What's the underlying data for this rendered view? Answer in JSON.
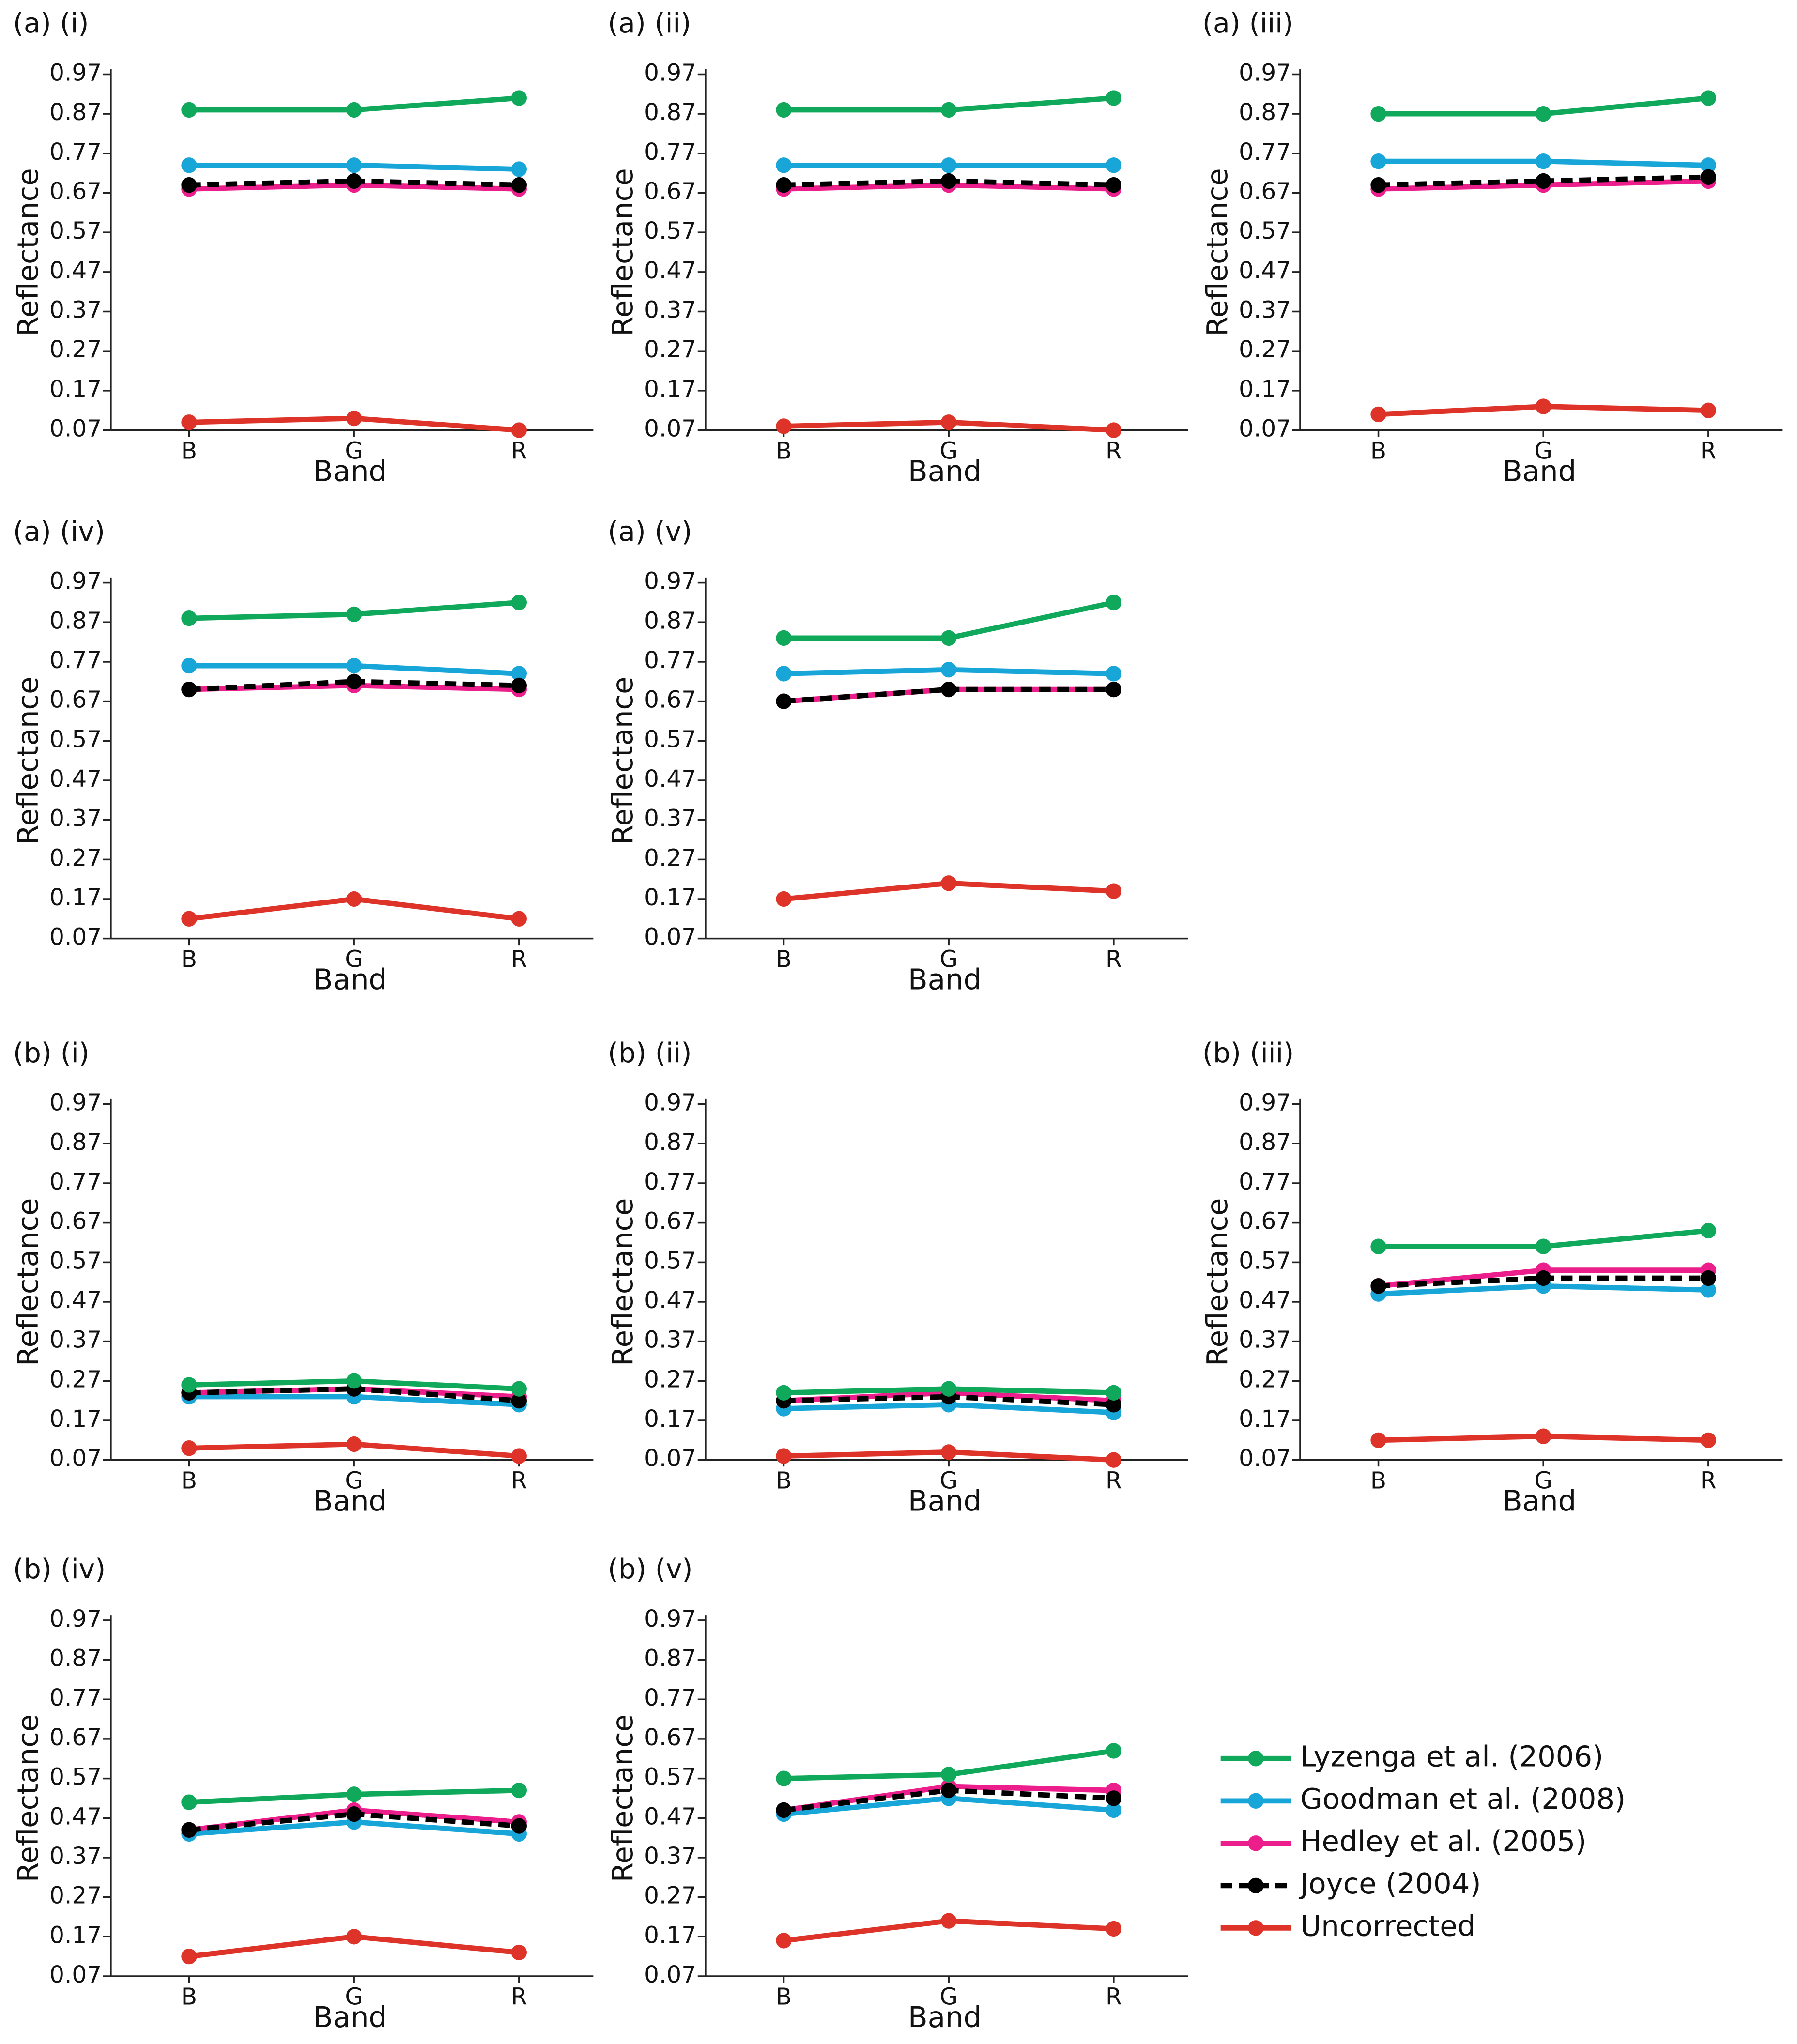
{
  "chart_data": [
    {
      "type": "line",
      "title": "(a) (i)",
      "xlabel": "Band",
      "ylabel": "Reflectance",
      "categories": [
        "B",
        "G",
        "R"
      ],
      "ylim": [
        0.07,
        0.97
      ],
      "yticks": [
        0.07,
        0.17,
        0.27,
        0.37,
        0.47,
        0.57,
        0.67,
        0.77,
        0.87,
        0.97
      ],
      "series": [
        {
          "values": [
            0.88,
            0.88,
            0.91
          ]
        },
        {
          "values": [
            0.74,
            0.74,
            0.73
          ]
        },
        {
          "values": [
            0.68,
            0.69,
            0.68
          ]
        },
        {
          "values": [
            0.69,
            0.7,
            0.69
          ]
        },
        {
          "values": [
            0.09,
            0.1,
            0.07
          ]
        }
      ]
    },
    {
      "type": "line",
      "title": "(a) (ii)",
      "xlabel": "Band",
      "ylabel": "Reflectance",
      "categories": [
        "B",
        "G",
        "R"
      ],
      "ylim": [
        0.07,
        0.97
      ],
      "yticks": [
        0.07,
        0.17,
        0.27,
        0.37,
        0.47,
        0.57,
        0.67,
        0.77,
        0.87,
        0.97
      ],
      "series": [
        {
          "values": [
            0.88,
            0.88,
            0.91
          ]
        },
        {
          "values": [
            0.74,
            0.74,
            0.74
          ]
        },
        {
          "values": [
            0.68,
            0.69,
            0.68
          ]
        },
        {
          "values": [
            0.69,
            0.7,
            0.69
          ]
        },
        {
          "values": [
            0.08,
            0.09,
            0.07
          ]
        }
      ]
    },
    {
      "type": "line",
      "title": "(a) (iii)",
      "xlabel": "Band",
      "ylabel": "Reflectance",
      "categories": [
        "B",
        "G",
        "R"
      ],
      "ylim": [
        0.07,
        0.97
      ],
      "yticks": [
        0.07,
        0.17,
        0.27,
        0.37,
        0.47,
        0.57,
        0.67,
        0.77,
        0.87,
        0.97
      ],
      "series": [
        {
          "values": [
            0.87,
            0.87,
            0.91
          ]
        },
        {
          "values": [
            0.75,
            0.75,
            0.74
          ]
        },
        {
          "values": [
            0.68,
            0.69,
            0.7
          ]
        },
        {
          "values": [
            0.69,
            0.7,
            0.71
          ]
        },
        {
          "values": [
            0.11,
            0.13,
            0.12
          ]
        }
      ]
    },
    {
      "type": "line",
      "title": "(a) (iv)",
      "xlabel": "Band",
      "ylabel": "Reflectance",
      "categories": [
        "B",
        "G",
        "R"
      ],
      "ylim": [
        0.07,
        0.97
      ],
      "yticks": [
        0.07,
        0.17,
        0.27,
        0.37,
        0.47,
        0.57,
        0.67,
        0.77,
        0.87,
        0.97
      ],
      "series": [
        {
          "values": [
            0.88,
            0.89,
            0.92
          ]
        },
        {
          "values": [
            0.76,
            0.76,
            0.74
          ]
        },
        {
          "values": [
            0.7,
            0.71,
            0.7
          ]
        },
        {
          "values": [
            0.7,
            0.72,
            0.71
          ]
        },
        {
          "values": [
            0.12,
            0.17,
            0.12
          ]
        }
      ]
    },
    {
      "type": "line",
      "title": "(a) (v)",
      "xlabel": "Band",
      "ylabel": "Reflectance",
      "categories": [
        "B",
        "G",
        "R"
      ],
      "ylim": [
        0.07,
        0.97
      ],
      "yticks": [
        0.07,
        0.17,
        0.27,
        0.37,
        0.47,
        0.57,
        0.67,
        0.77,
        0.87,
        0.97
      ],
      "series": [
        {
          "values": [
            0.83,
            0.83,
            0.92
          ]
        },
        {
          "values": [
            0.74,
            0.75,
            0.74
          ]
        },
        {
          "values": [
            0.67,
            0.7,
            0.7
          ]
        },
        {
          "values": [
            0.67,
            0.7,
            0.7
          ]
        },
        {
          "values": [
            0.17,
            0.21,
            0.19
          ]
        }
      ]
    },
    {
      "type": "line",
      "title": "(b) (i)",
      "xlabel": "Band",
      "ylabel": "Reflectance",
      "categories": [
        "B",
        "G",
        "R"
      ],
      "ylim": [
        0.07,
        0.97
      ],
      "yticks": [
        0.07,
        0.17,
        0.27,
        0.37,
        0.47,
        0.57,
        0.67,
        0.77,
        0.87,
        0.97
      ],
      "series": [
        {
          "values": [
            0.26,
            0.27,
            0.25
          ]
        },
        {
          "values": [
            0.23,
            0.23,
            0.21
          ]
        },
        {
          "values": [
            0.24,
            0.25,
            0.23
          ]
        },
        {
          "values": [
            0.24,
            0.25,
            0.22
          ]
        },
        {
          "values": [
            0.1,
            0.11,
            0.08
          ]
        }
      ]
    },
    {
      "type": "line",
      "title": "(b) (ii)",
      "xlabel": "Band",
      "ylabel": "Reflectance",
      "categories": [
        "B",
        "G",
        "R"
      ],
      "ylim": [
        0.07,
        0.97
      ],
      "yticks": [
        0.07,
        0.17,
        0.27,
        0.37,
        0.47,
        0.57,
        0.67,
        0.77,
        0.87,
        0.97
      ],
      "series": [
        {
          "values": [
            0.24,
            0.25,
            0.24
          ]
        },
        {
          "values": [
            0.2,
            0.21,
            0.19
          ]
        },
        {
          "values": [
            0.22,
            0.24,
            0.22
          ]
        },
        {
          "values": [
            0.22,
            0.23,
            0.21
          ]
        },
        {
          "values": [
            0.08,
            0.09,
            0.07
          ]
        }
      ]
    },
    {
      "type": "line",
      "title": "(b) (iii)",
      "xlabel": "Band",
      "ylabel": "Reflectance",
      "categories": [
        "B",
        "G",
        "R"
      ],
      "ylim": [
        0.07,
        0.97
      ],
      "yticks": [
        0.07,
        0.17,
        0.27,
        0.37,
        0.47,
        0.57,
        0.67,
        0.77,
        0.87,
        0.97
      ],
      "series": [
        {
          "values": [
            0.61,
            0.61,
            0.65
          ]
        },
        {
          "values": [
            0.49,
            0.51,
            0.5
          ]
        },
        {
          "values": [
            0.51,
            0.55,
            0.55
          ]
        },
        {
          "values": [
            0.51,
            0.53,
            0.53
          ]
        },
        {
          "values": [
            0.12,
            0.13,
            0.12
          ]
        }
      ]
    },
    {
      "type": "line",
      "title": "(b) (iv)",
      "xlabel": "Band",
      "ylabel": "Reflectance",
      "categories": [
        "B",
        "G",
        "R"
      ],
      "ylim": [
        0.07,
        0.97
      ],
      "yticks": [
        0.07,
        0.17,
        0.27,
        0.37,
        0.47,
        0.57,
        0.67,
        0.77,
        0.87,
        0.97
      ],
      "series": [
        {
          "values": [
            0.51,
            0.53,
            0.54
          ]
        },
        {
          "values": [
            0.43,
            0.46,
            0.43
          ]
        },
        {
          "values": [
            0.44,
            0.49,
            0.46
          ]
        },
        {
          "values": [
            0.44,
            0.48,
            0.45
          ]
        },
        {
          "values": [
            0.12,
            0.17,
            0.13
          ]
        }
      ]
    },
    {
      "type": "line",
      "title": "(b) (v)",
      "xlabel": "Band",
      "ylabel": "Reflectance",
      "categories": [
        "B",
        "G",
        "R"
      ],
      "ylim": [
        0.07,
        0.97
      ],
      "yticks": [
        0.07,
        0.17,
        0.27,
        0.37,
        0.47,
        0.57,
        0.67,
        0.77,
        0.87,
        0.97
      ],
      "series": [
        {
          "values": [
            0.57,
            0.58,
            0.64
          ]
        },
        {
          "values": [
            0.48,
            0.52,
            0.49
          ]
        },
        {
          "values": [
            0.49,
            0.55,
            0.54
          ]
        },
        {
          "values": [
            0.49,
            0.54,
            0.52
          ]
        },
        {
          "values": [
            0.16,
            0.21,
            0.19
          ]
        }
      ]
    }
  ],
  "legend": {
    "entries": [
      {
        "name": "Lyzenga et al. (2006)",
        "color": "#10a85a",
        "dashed": false
      },
      {
        "name": "Goodman et al. (2008)",
        "color": "#18a5d8",
        "dashed": false
      },
      {
        "name": "Hedley et al. (2005)",
        "color": "#ec1e8c",
        "dashed": false
      },
      {
        "name": "Joyce (2004)",
        "color": "#000000",
        "dashed": true
      },
      {
        "name": "Uncorrected",
        "color": "#dd3329",
        "dashed": false
      }
    ]
  }
}
